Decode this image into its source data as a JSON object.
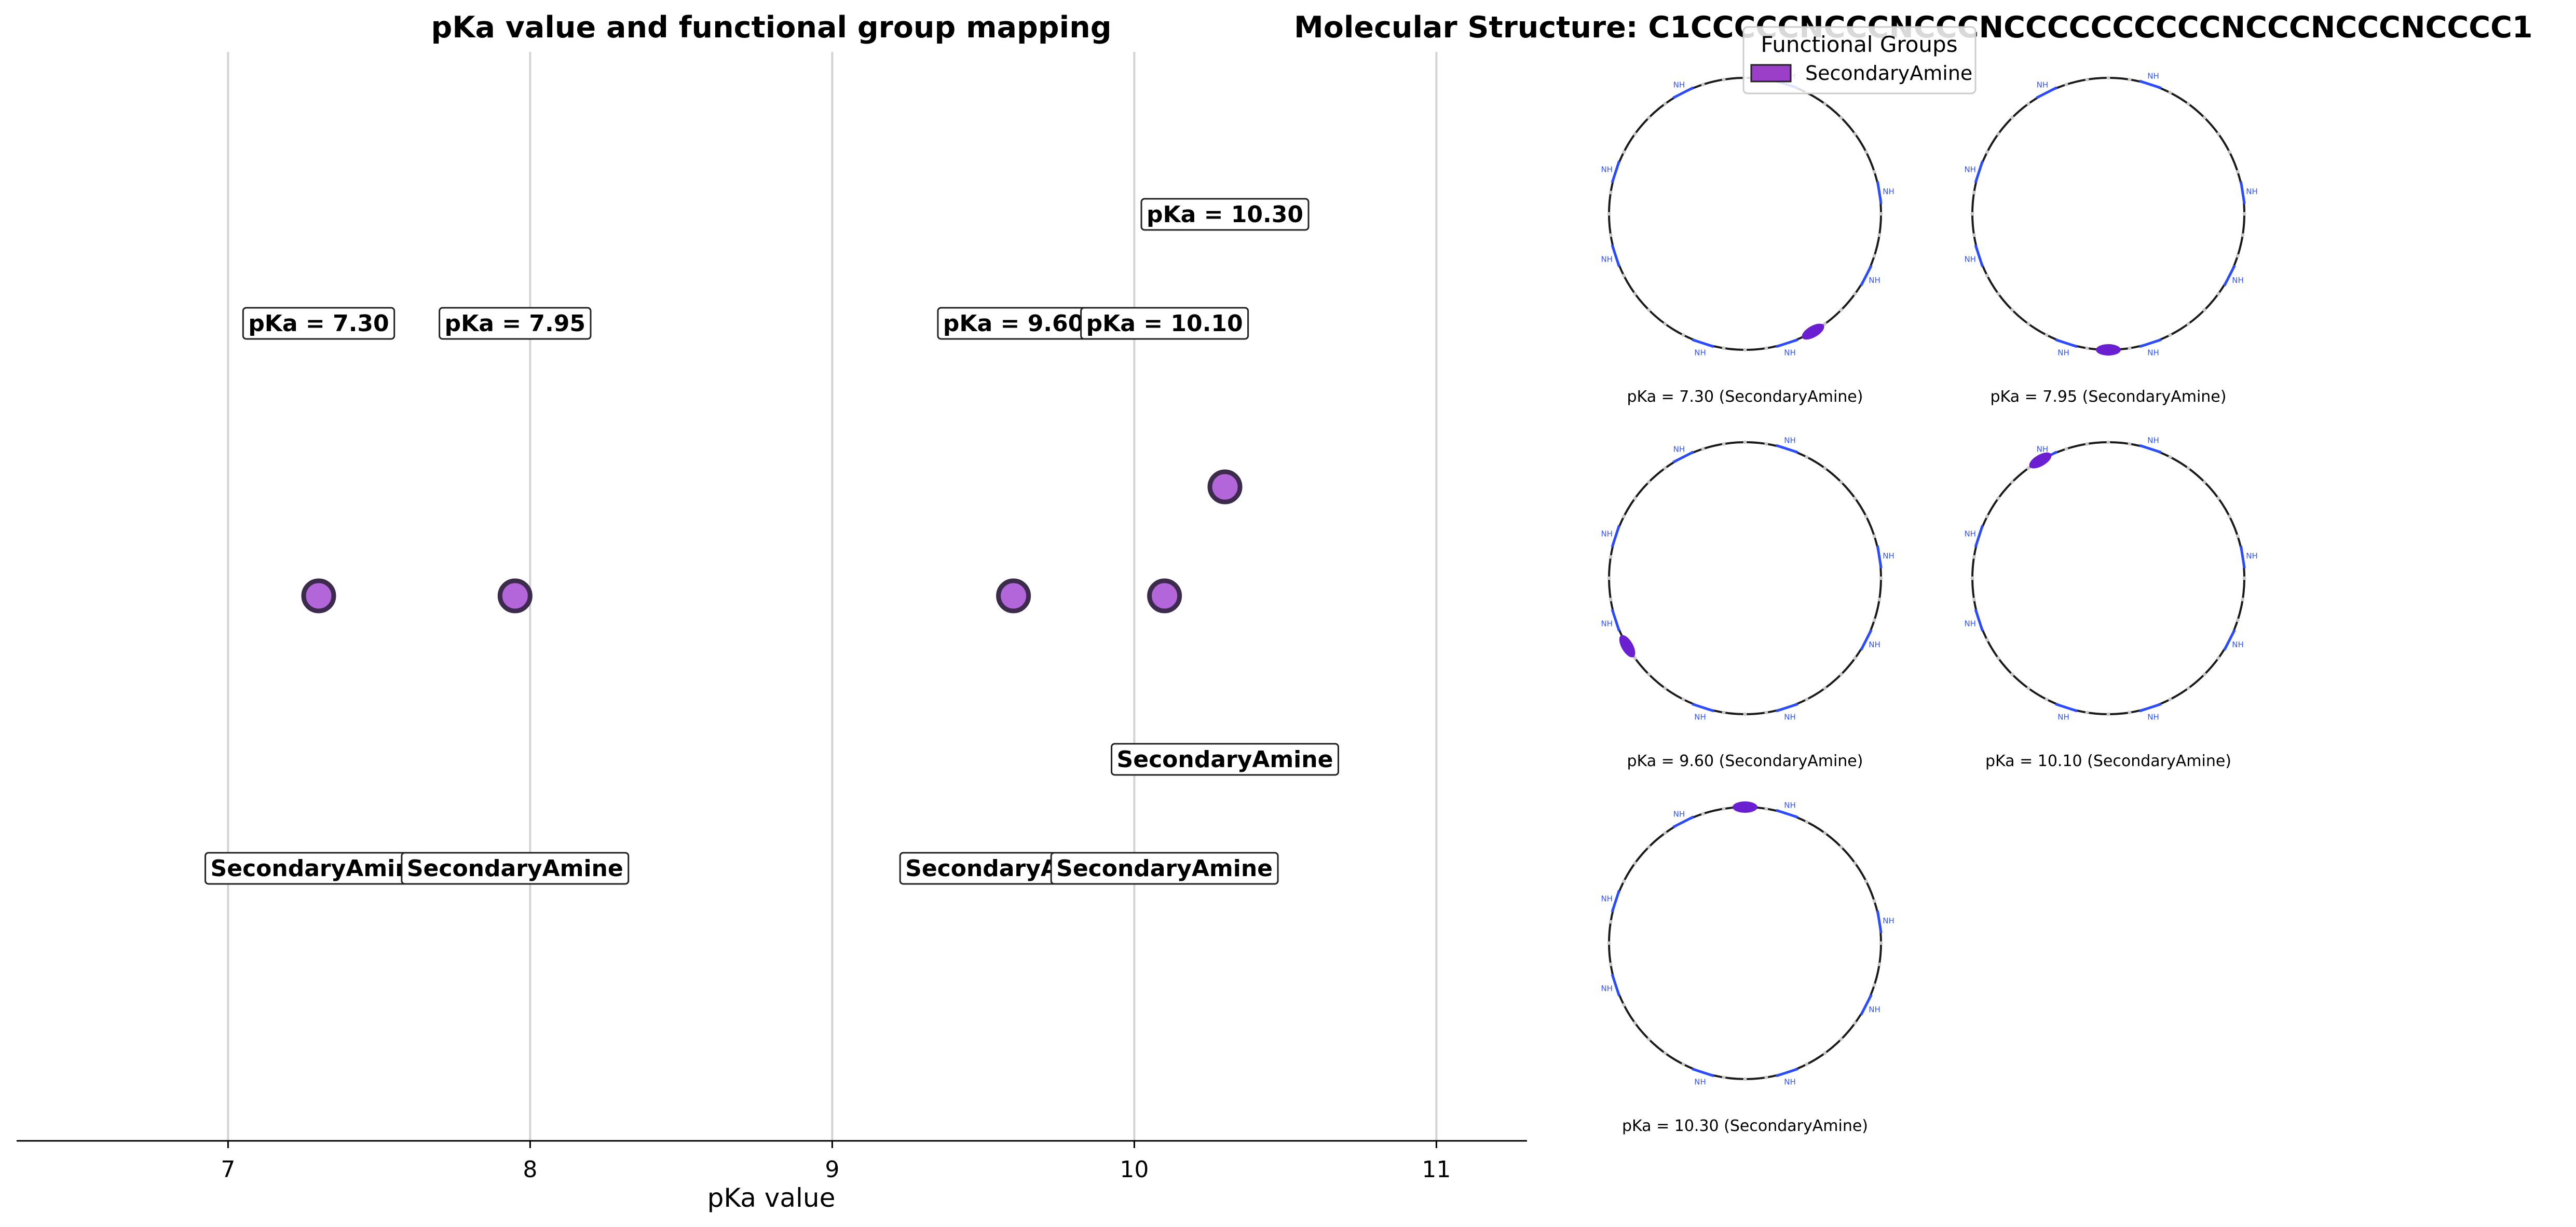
{
  "chart_data": [
    {
      "type": "scatter",
      "title": "pKa value and functional group mapping",
      "xlabel": "pKa value",
      "ylabel": "",
      "xlim": [
        6.3,
        11.3
      ],
      "xticks": [
        7,
        8,
        9,
        10,
        11
      ],
      "grid": "vertical",
      "points": [
        {
          "x": 7.3,
          "label": "pKa = 7.30",
          "group": "SecondaryAmine",
          "row": 1
        },
        {
          "x": 7.95,
          "label": "pKa = 7.95",
          "group": "SecondaryAmine",
          "row": 1
        },
        {
          "x": 9.6,
          "label": "pKa = 9.60",
          "group": "SecondaryAmine",
          "row": 1
        },
        {
          "x": 10.1,
          "label": "pKa = 10.10",
          "group": "SecondaryAmine",
          "row": 1
        },
        {
          "x": 10.3,
          "label": "pKa = 10.30",
          "group": "SecondaryAmine",
          "row": 2
        }
      ],
      "marker_color": "#b266d9",
      "marker_edge_color": "#3d2b4d"
    },
    {
      "type": "other",
      "title": "Molecular Structure: C1CCCCCNCCCNCCCNCCCCCCCCCCNCCCNCCCNCCCC1",
      "legend": {
        "title": "Functional Groups",
        "entries": [
          {
            "name": "SecondaryAmine",
            "color": "#9b3fc9"
          }
        ],
        "position": "top"
      },
      "panels": [
        {
          "caption": "pKa = 7.30 (SecondaryAmine)",
          "highlight_angle": 60
        },
        {
          "caption": "pKa = 7.95 (SecondaryAmine)",
          "highlight_angle": 90
        },
        {
          "caption": "pKa = 9.60 (SecondaryAmine)",
          "highlight_angle": 150
        },
        {
          "caption": "pKa = 10.10 (SecondaryAmine)",
          "highlight_angle": 240
        },
        {
          "caption": "pKa = 10.30 (SecondaryAmine)",
          "highlight_angle": 270
        }
      ],
      "ring_atom_label": "NH",
      "ring_atom_label_top": "H",
      "highlight_color": "#6a1fd0"
    }
  ]
}
